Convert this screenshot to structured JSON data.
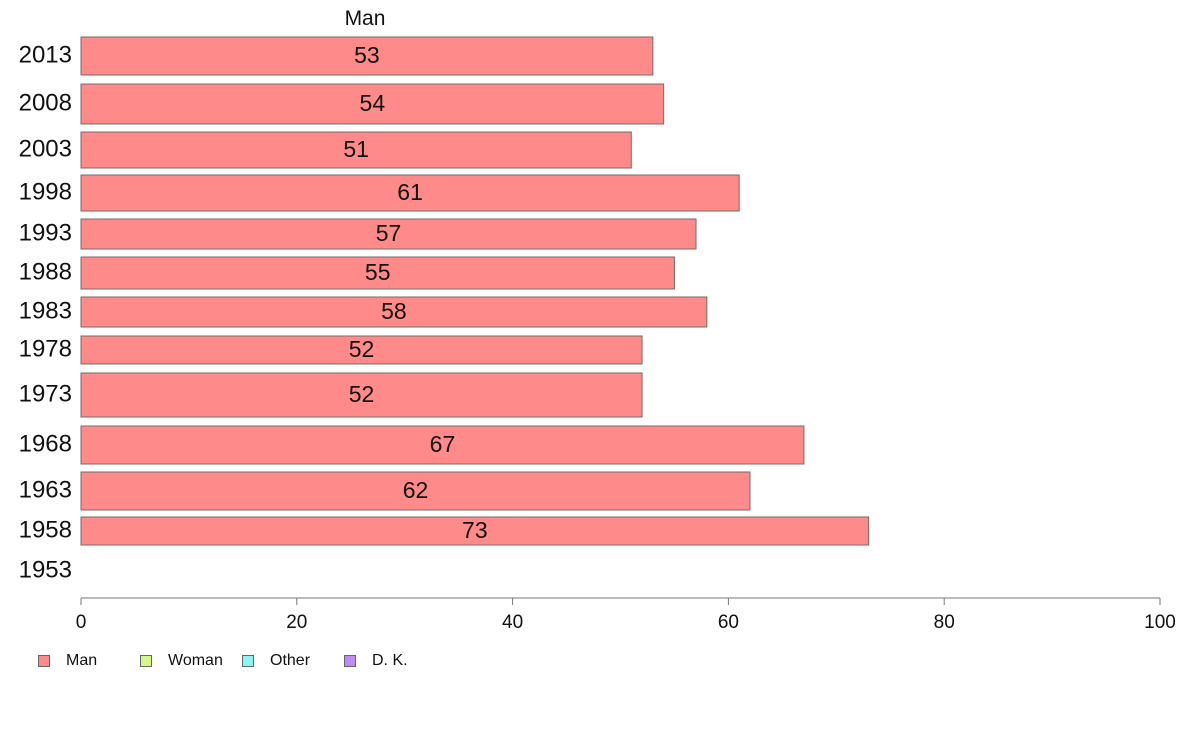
{
  "chart_data": {
    "type": "bar",
    "orientation": "horizontal",
    "title": "Man",
    "categories": [
      "2013",
      "2008",
      "2003",
      "1998",
      "1993",
      "1988",
      "1983",
      "1978",
      "1973",
      "1968",
      "1963",
      "1958",
      "1953"
    ],
    "series": [
      {
        "name": "Man",
        "color": "#ff8a8a",
        "values": [
          53,
          54,
          51,
          61,
          57,
          55,
          58,
          52,
          52,
          67,
          62,
          73,
          null
        ]
      }
    ],
    "xlim": [
      0,
      100
    ],
    "xticks": [
      0,
      20,
      40,
      60,
      80,
      100
    ],
    "grid": false,
    "legend_position": "bottom-left"
  },
  "legend": [
    {
      "label": "Man",
      "color": "#ff8a8a"
    },
    {
      "label": "Woman",
      "color": "#d4f78a"
    },
    {
      "label": "Other",
      "color": "#8af7f2"
    },
    {
      "label": "D. K.",
      "color": "#c08af7"
    }
  ]
}
